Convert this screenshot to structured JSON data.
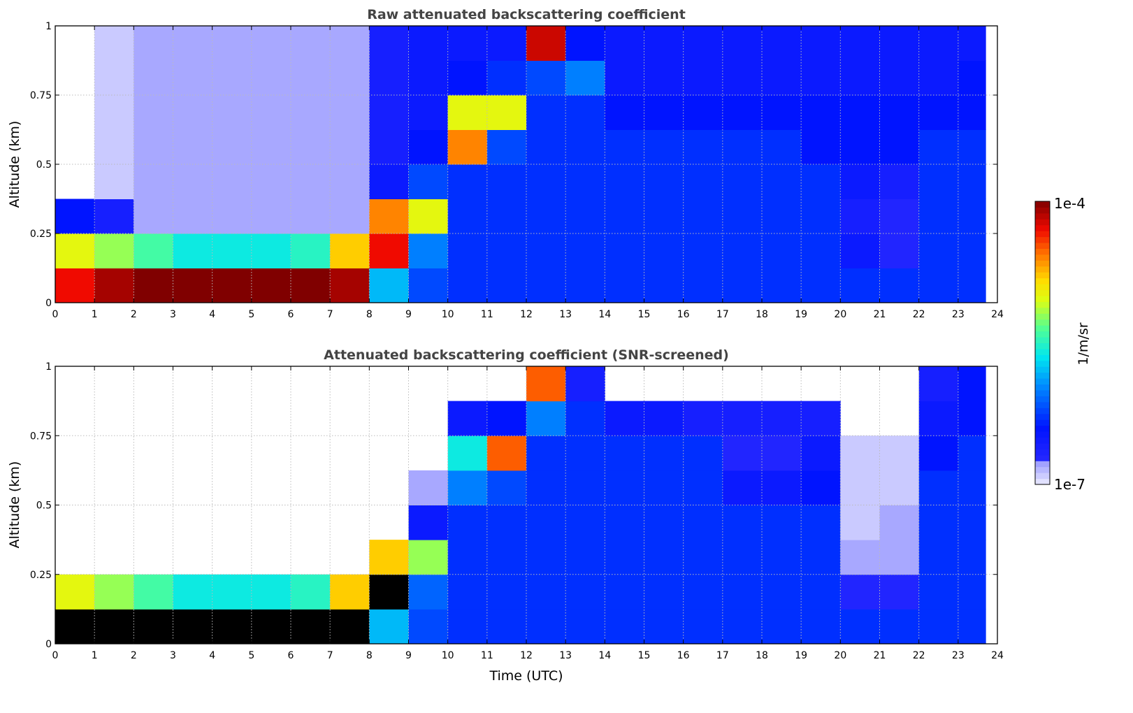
{
  "chart_data": [
    {
      "type": "heatmap",
      "title": "Raw attenuated backscattering coefficient",
      "xlabel": "",
      "ylabel": "Altitude (km)",
      "xlim": [
        0,
        24
      ],
      "ylim": [
        0,
        1
      ],
      "xticks": [
        "0",
        "1",
        "2",
        "3",
        "4",
        "5",
        "6",
        "7",
        "8",
        "9",
        "10",
        "11",
        "12",
        "13",
        "14",
        "15",
        "16",
        "17",
        "18",
        "19",
        "20",
        "21",
        "22",
        "23",
        "24"
      ],
      "yticks": [
        "0",
        "0.25",
        "0.5",
        "0.75",
        "1"
      ],
      "grid": true,
      "x_bin_hours": 1,
      "y_bin_km": 0.125,
      "value_units": "log10(1/m/sr)",
      "over_color": "#800000",
      "columns": [
        [
          -4.3,
          -5.0,
          -6.4,
          null,
          null,
          null,
          null,
          null
        ],
        [
          -4.1,
          -5.2,
          -6.6,
          -6.9,
          -6.9,
          -6.9,
          -6.9,
          -6.9
        ],
        [
          -4.0,
          -5.4,
          -6.8,
          -6.8,
          -6.8,
          -6.8,
          -6.8,
          -6.8
        ],
        [
          -4.0,
          -5.6,
          -6.8,
          -6.8,
          -6.8,
          -6.8,
          -6.8,
          -6.8
        ],
        [
          -4.0,
          -5.6,
          -6.8,
          -6.8,
          -6.8,
          -6.8,
          -6.8,
          -6.8
        ],
        [
          -4.0,
          -5.6,
          -6.8,
          -6.8,
          -6.8,
          -6.8,
          -6.8,
          -6.8
        ],
        [
          -4.0,
          -5.5,
          -6.8,
          -6.8,
          -6.8,
          -6.8,
          -6.8,
          -6.8
        ],
        [
          -4.1,
          -4.8,
          -6.8,
          -6.8,
          -6.8,
          -6.8,
          -6.8,
          -6.8
        ],
        [
          -5.8,
          -4.3,
          -4.6,
          -6.5,
          -6.6,
          -6.6,
          -6.6,
          -6.6
        ],
        [
          -6.2,
          -6.0,
          -5.0,
          -6.2,
          -6.4,
          -6.5,
          -6.5,
          -6.5
        ],
        [
          -6.3,
          -6.3,
          -6.3,
          -6.3,
          -4.6,
          -5.0,
          -6.4,
          -6.5
        ],
        [
          -6.3,
          -6.3,
          -6.3,
          -6.3,
          -6.2,
          -5.0,
          -6.3,
          -6.5
        ],
        [
          -6.3,
          -6.3,
          -6.3,
          -6.3,
          -6.3,
          -6.3,
          -6.2,
          -4.2
        ],
        [
          -6.3,
          -6.3,
          -6.3,
          -6.3,
          -6.3,
          -6.3,
          -6.0,
          -6.4
        ],
        [
          -6.3,
          -6.3,
          -6.3,
          -6.3,
          -6.3,
          -6.4,
          -6.5,
          -6.5
        ],
        [
          -6.3,
          -6.3,
          -6.3,
          -6.3,
          -6.3,
          -6.4,
          -6.5,
          -6.5
        ],
        [
          -6.3,
          -6.3,
          -6.3,
          -6.3,
          -6.3,
          -6.4,
          -6.5,
          -6.5
        ],
        [
          -6.3,
          -6.3,
          -6.3,
          -6.3,
          -6.3,
          -6.4,
          -6.5,
          -6.5
        ],
        [
          -6.3,
          -6.3,
          -6.3,
          -6.3,
          -6.3,
          -6.4,
          -6.5,
          -6.5
        ],
        [
          -6.3,
          -6.3,
          -6.3,
          -6.3,
          -6.4,
          -6.4,
          -6.5,
          -6.5
        ],
        [
          -6.3,
          -6.5,
          -6.6,
          -6.5,
          -6.4,
          -6.4,
          -6.5,
          -6.5
        ],
        [
          -6.3,
          -6.7,
          -6.7,
          -6.6,
          -6.4,
          -6.4,
          -6.5,
          -6.5
        ],
        [
          -6.3,
          -6.3,
          -6.3,
          -6.3,
          -6.3,
          -6.4,
          -6.5,
          -6.5
        ],
        [
          -6.3,
          -6.3,
          -6.3,
          -6.3,
          -6.3,
          -6.4,
          -6.4,
          -6.5
        ]
      ],
      "data_end_hour": 23.7
    },
    {
      "type": "heatmap",
      "title": "Attenuated backscattering coefficient (SNR-screened)",
      "xlabel": "Time (UTC)",
      "ylabel": "Altitude (km)",
      "xlim": [
        0,
        24
      ],
      "ylim": [
        0,
        1
      ],
      "xticks": [
        "0",
        "1",
        "2",
        "3",
        "4",
        "5",
        "6",
        "7",
        "8",
        "9",
        "10",
        "11",
        "12",
        "13",
        "14",
        "15",
        "16",
        "17",
        "18",
        "19",
        "20",
        "21",
        "22",
        "23",
        "24"
      ],
      "yticks": [
        "0",
        "0.25",
        "0.5",
        "0.75",
        "1"
      ],
      "grid": true,
      "x_bin_hours": 1,
      "y_bin_km": 0.125,
      "value_units": "log10(1/m/sr)",
      "over_color": "#000000",
      "columns": [
        [
          -3.8,
          -5.0,
          null,
          null,
          null,
          null,
          null,
          null
        ],
        [
          -3.8,
          -5.2,
          null,
          null,
          null,
          null,
          null,
          null
        ],
        [
          -3.8,
          -5.4,
          null,
          null,
          null,
          null,
          null,
          null
        ],
        [
          -3.8,
          -5.6,
          null,
          null,
          null,
          null,
          null,
          null
        ],
        [
          -3.8,
          -5.6,
          null,
          null,
          null,
          null,
          null,
          null
        ],
        [
          -3.8,
          -5.6,
          null,
          null,
          null,
          null,
          null,
          null
        ],
        [
          -3.8,
          -5.5,
          null,
          null,
          null,
          null,
          null,
          null
        ],
        [
          -3.8,
          -4.8,
          null,
          null,
          null,
          null,
          null,
          null
        ],
        [
          -5.8,
          -3.8,
          -4.8,
          null,
          null,
          null,
          null,
          null
        ],
        [
          -6.2,
          -6.1,
          -5.2,
          -6.5,
          -6.8,
          null,
          null,
          null
        ],
        [
          -6.3,
          -6.3,
          -6.3,
          -6.3,
          -6.0,
          -5.6,
          -6.5,
          null
        ],
        [
          -6.3,
          -6.3,
          -6.3,
          -6.3,
          -6.2,
          -4.5,
          -6.4,
          null
        ],
        [
          -6.3,
          -6.3,
          -6.3,
          -6.3,
          -6.3,
          -6.3,
          -6.0,
          -4.5
        ],
        [
          -6.3,
          -6.3,
          -6.3,
          -6.3,
          -6.3,
          -6.3,
          -6.3,
          -6.6
        ],
        [
          -6.3,
          -6.3,
          -6.3,
          -6.3,
          -6.3,
          -6.3,
          -6.5,
          null
        ],
        [
          -6.3,
          -6.3,
          -6.3,
          -6.3,
          -6.3,
          -6.3,
          -6.5,
          null
        ],
        [
          -6.3,
          -6.3,
          -6.3,
          -6.3,
          -6.3,
          -6.3,
          -6.6,
          null
        ],
        [
          -6.3,
          -6.3,
          -6.3,
          -6.3,
          -6.5,
          -6.7,
          -6.6,
          null
        ],
        [
          -6.3,
          -6.3,
          -6.3,
          -6.3,
          -6.5,
          -6.7,
          -6.6,
          null
        ],
        [
          -6.3,
          -6.3,
          -6.3,
          -6.3,
          -6.4,
          -6.5,
          -6.6,
          null
        ],
        [
          -6.3,
          -6.7,
          -6.8,
          -6.9,
          -6.9,
          -6.9,
          null,
          null
        ],
        [
          -6.3,
          -6.7,
          -6.8,
          -6.8,
          -6.9,
          -6.9,
          null,
          null
        ],
        [
          -6.3,
          -6.3,
          -6.3,
          -6.3,
          -6.3,
          -6.4,
          -6.5,
          -6.6
        ],
        [
          -6.3,
          -6.3,
          -6.3,
          -6.3,
          -6.3,
          -6.3,
          -6.4,
          -6.4
        ]
      ],
      "data_end_hour": 23.7
    }
  ],
  "colorbar": {
    "label": "1/m/sr",
    "max_label": "1e-4",
    "min_label": "1e-7",
    "range_log10": [
      -7,
      -4
    ]
  }
}
